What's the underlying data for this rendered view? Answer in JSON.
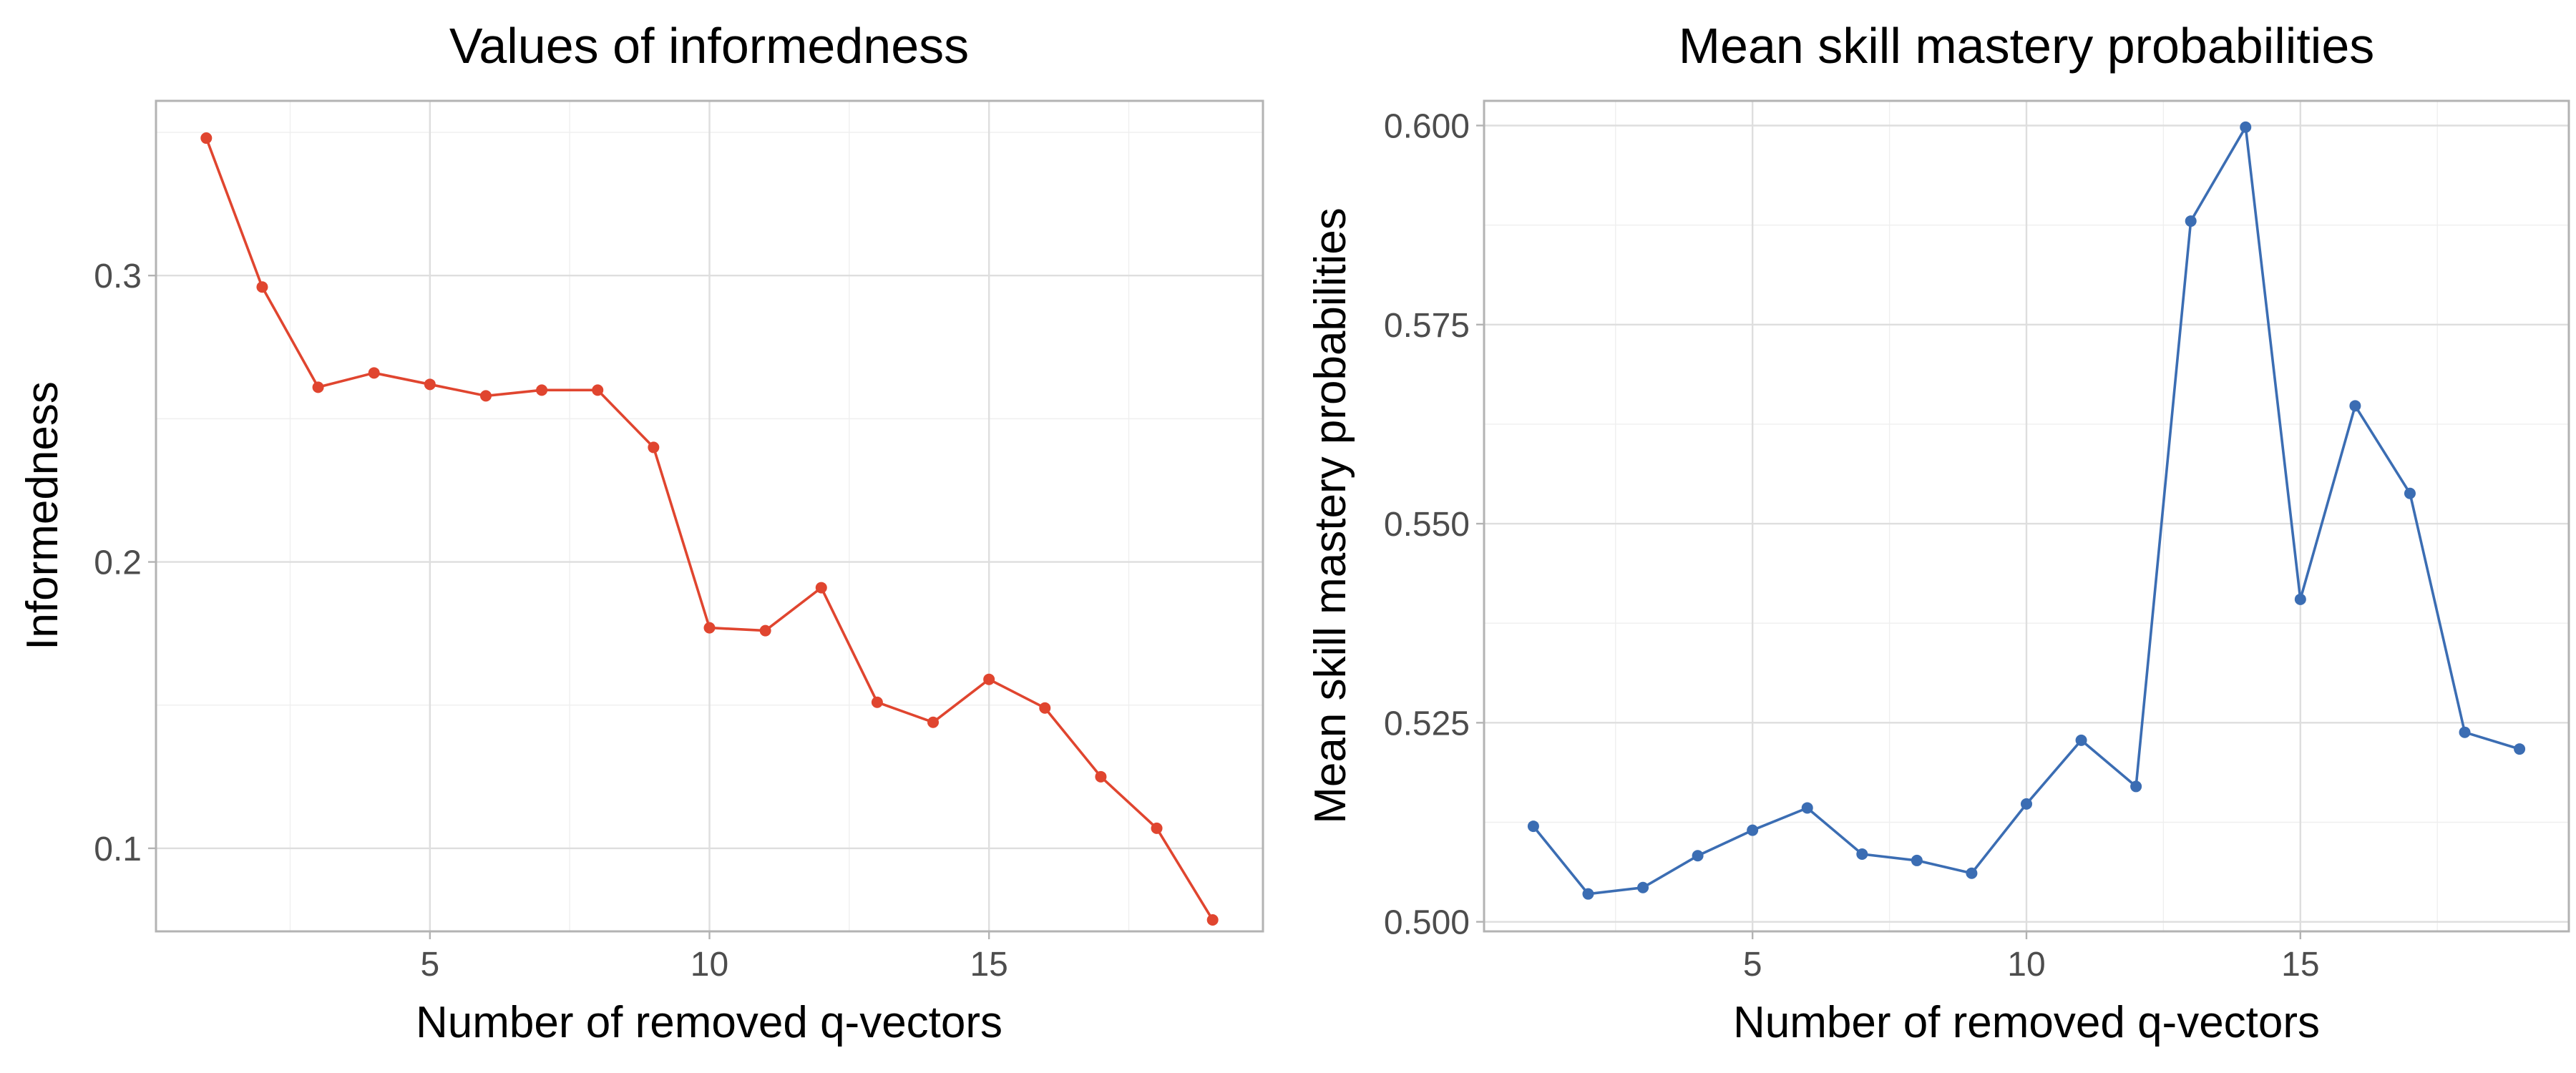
{
  "figure": {
    "background": "#ffffff",
    "grid": true,
    "theme": "light"
  },
  "chart_data": [
    {
      "type": "line",
      "markers": true,
      "title": "Values of informedness",
      "xlabel": "Number of removed q-vectors",
      "ylabel": "Informedness",
      "color": "#e0452f",
      "xlim": [
        0.1,
        19.9
      ],
      "ylim": [
        0.071,
        0.361
      ],
      "x_ticks": [
        5,
        10,
        15
      ],
      "x_tick_labels": [
        "5",
        "10",
        "15"
      ],
      "x_minor_ticks": [
        2.5,
        7.5,
        12.5,
        17.5
      ],
      "y_ticks": [
        0.1,
        0.2,
        0.3
      ],
      "y_tick_labels": [
        "0.1",
        "0.2",
        "0.3"
      ],
      "y_minor_ticks": [
        0.15,
        0.25,
        0.35
      ],
      "x": [
        1,
        2,
        3,
        4,
        5,
        6,
        7,
        8,
        9,
        10,
        11,
        12,
        13,
        14,
        15,
        16,
        17,
        18,
        19
      ],
      "values": [
        0.348,
        0.296,
        0.261,
        0.266,
        0.262,
        0.258,
        0.26,
        0.26,
        0.24,
        0.177,
        0.176,
        0.191,
        0.151,
        0.144,
        0.159,
        0.149,
        0.125,
        0.107,
        0.075
      ]
    },
    {
      "type": "line",
      "markers": true,
      "title": "Mean skill mastery probabilities",
      "xlabel": "Number of removed q-vectors",
      "ylabel": "Mean skill mastery probabilities",
      "color": "#3b6db3",
      "xlim": [
        0.1,
        19.9
      ],
      "ylim": [
        0.4988,
        0.6031
      ],
      "x_ticks": [
        5,
        10,
        15
      ],
      "x_tick_labels": [
        "5",
        "10",
        "15"
      ],
      "x_minor_ticks": [
        2.5,
        7.5,
        12.5,
        17.5
      ],
      "y_ticks": [
        0.5,
        0.525,
        0.55,
        0.575,
        0.6
      ],
      "y_tick_labels": [
        "0.500",
        "0.525",
        "0.550",
        "0.575",
        "0.600"
      ],
      "y_minor_ticks": [
        0.5125,
        0.5375,
        0.5625,
        0.5875
      ],
      "x": [
        1,
        2,
        3,
        4,
        5,
        6,
        7,
        8,
        9,
        10,
        11,
        12,
        13,
        14,
        15,
        16,
        17,
        18,
        19
      ],
      "values": [
        0.512,
        0.5035,
        0.5043,
        0.5083,
        0.5115,
        0.5143,
        0.5085,
        0.5077,
        0.5061,
        0.5148,
        0.5228,
        0.517,
        0.588,
        0.5998,
        0.5405,
        0.5648,
        0.5538,
        0.5238,
        0.5217
      ]
    }
  ]
}
